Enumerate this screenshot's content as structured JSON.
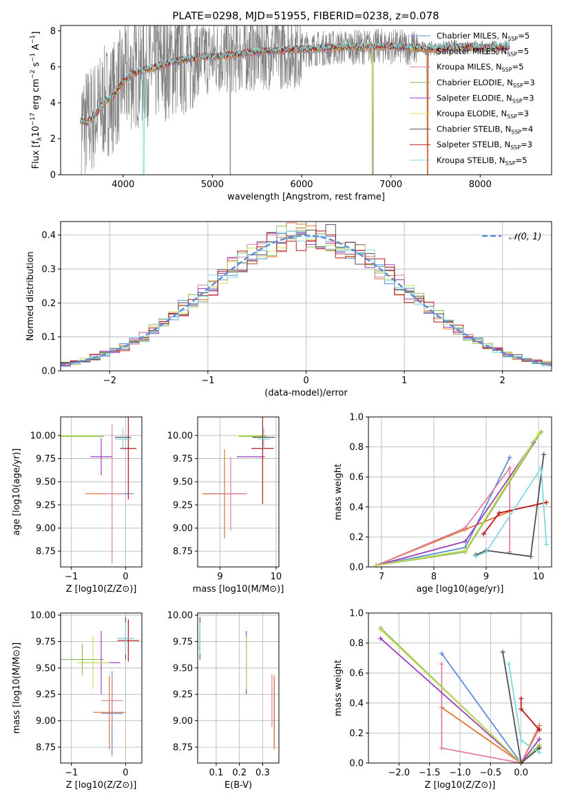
{
  "title": "PLATE=0298, MJD=51955, FIBERID=0238, z=0.078",
  "colors": {
    "Chabrier MILES": "#5b8bd9",
    "Salpeter MILES": "#e0712c",
    "Kroupa MILES": "#e07f9e",
    "Chabrier ELODIE": "#8cb85a",
    "Salpeter ELODIE": "#9b3dba",
    "Kroupa ELODIE": "#c8e05a",
    "Chabrier STELIB": "#505050",
    "Salpeter STELIB": "#b81414",
    "Kroupa STELIB": "#7fd8dc",
    "data": "#808080",
    "normal": "#5b8bd9"
  },
  "chart_data": [
    {
      "id": "spectrum",
      "type": "line",
      "title": "PLATE=0298, MJD=51955, FIBERID=0238, z=0.078",
      "xlabel": "wavelength [Angstrom, rest frame]",
      "ylabel": "Flux [fλ10−17 erg cm−2 s−1 A−1]",
      "xlim": [
        3300,
        8800
      ],
      "ylim": [
        0,
        8.3
      ],
      "xticks": [
        "4000",
        "5000",
        "6000",
        "7000",
        "8000"
      ],
      "yticks": [
        "0",
        "2",
        "4",
        "6",
        "8"
      ],
      "legend": [
        {
          "name": "Chabrier MILES",
          "nssp": "5"
        },
        {
          "name": "Salpeter MILES",
          "nssp": "5"
        },
        {
          "name": "Kroupa MILES",
          "nssp": "5"
        },
        {
          "name": "Chabrier ELODIE",
          "nssp": "3"
        },
        {
          "name": "Salpeter ELODIE",
          "nssp": "3"
        },
        {
          "name": "Kroupa ELODIE",
          "nssp": "3"
        },
        {
          "name": "Chabrier STELIB",
          "nssp": "4"
        },
        {
          "name": "Salpeter STELIB",
          "nssp": "3"
        },
        {
          "name": "Kroupa STELIB",
          "nssp": "5"
        }
      ],
      "model_continuum": {
        "x": [
          3520,
          3600,
          3700,
          3800,
          3900,
          4000,
          4100,
          4200,
          4300,
          4500,
          4700,
          4900,
          5100,
          5300,
          5500,
          5700,
          5900,
          6100,
          6300,
          6500,
          6700,
          6900,
          7100,
          7300,
          7500,
          7700,
          7900,
          8100,
          8300
        ],
        "y": [
          3.0,
          2.9,
          3.4,
          4.1,
          4.4,
          5.2,
          5.6,
          5.8,
          5.9,
          6.2,
          6.4,
          6.55,
          6.6,
          6.7,
          6.85,
          6.9,
          6.95,
          7.0,
          7.05,
          7.1,
          7.1,
          7.15,
          7.1,
          7.05,
          7.0,
          7.1,
          7.1,
          7.05,
          7.1
        ]
      }
    },
    {
      "id": "residuals",
      "type": "line",
      "xlabel": "(data-model)/error",
      "ylabel": "Normed distribution",
      "xlim": [
        -2.5,
        2.5
      ],
      "ylim": [
        0,
        0.44
      ],
      "xticks": [
        "−2",
        "−1",
        "0",
        "1",
        "2"
      ],
      "yticks": [
        "0.0",
        "0.1",
        "0.2",
        "0.3",
        "0.4"
      ],
      "legend": "𝒩(0, 1)",
      "series": [
        {
          "name": "𝒩(0, 1)",
          "x": [
            -2.5,
            -2.0,
            -1.5,
            -1.0,
            -0.5,
            0.0,
            0.5,
            1.0,
            1.5,
            2.0,
            2.5
          ],
          "y": [
            0.018,
            0.054,
            0.13,
            0.242,
            0.352,
            0.399,
            0.352,
            0.242,
            0.13,
            0.054,
            0.018
          ]
        }
      ]
    },
    {
      "id": "z-age",
      "type": "scatter",
      "xlabel": "Z [log10(Z/Z⊙)]",
      "ylabel": "age [log10(age/yr)]",
      "xlim": [
        -1.2,
        0.3
      ],
      "ylim": [
        8.58,
        10.2
      ],
      "xticks": [
        "−1",
        "0"
      ],
      "yticks": [
        "8.75",
        "9.00",
        "9.25",
        "9.50",
        "9.75",
        "10.00"
      ],
      "points": [
        {
          "model": "Chabrier MILES",
          "x": 0.0,
          "y": 9.37,
          "xerr": 0.15,
          "yerr": 0.0
        },
        {
          "model": "Salpeter MILES",
          "x": -0.45,
          "y": 9.37,
          "xerr": 0.3,
          "yerr": 0.0
        },
        {
          "model": "Kroupa MILES",
          "x": -0.25,
          "y": 9.37,
          "xerr": 0.2,
          "yerr": 0.75
        },
        {
          "model": "Chabrier ELODIE",
          "x": -0.85,
          "y": 9.99,
          "xerr": 0.45,
          "yerr": 0.0
        },
        {
          "model": "Salpeter ELODIE",
          "x": -0.45,
          "y": 9.77,
          "xerr": 0.2,
          "yerr": 0.2
        },
        {
          "model": "Kroupa ELODIE",
          "x": -0.85,
          "y": 10.0,
          "xerr": 0.35,
          "yerr": 0.0
        },
        {
          "model": "Chabrier STELIB",
          "x": -0.05,
          "y": 9.98,
          "xerr": 0.15,
          "yerr": 0.0
        },
        {
          "model": "Salpeter STELIB",
          "x": 0.05,
          "y": 9.86,
          "xerr": 0.15,
          "yerr": 0.55
        },
        {
          "model": "Kroupa STELIB",
          "x": -0.05,
          "y": 9.96,
          "xerr": 0.15,
          "yerr": 0.12
        }
      ]
    },
    {
      "id": "mass-age",
      "type": "scatter",
      "xlabel": "mass [log10(M/M⊙)]",
      "xlim": [
        8.6,
        10.05
      ],
      "ylim": [
        8.58,
        10.2
      ],
      "xticks": [
        "9",
        "10"
      ],
      "yticks": [
        "8.75",
        "9.00",
        "9.25",
        "9.50",
        "9.75",
        "10.00"
      ],
      "points": [
        {
          "model": "Chabrier MILES",
          "x": 9.06,
          "y": 9.37,
          "xerr": 0.35,
          "yerr": 0.0
        },
        {
          "model": "Salpeter MILES",
          "x": 9.08,
          "y": 9.37,
          "xerr": 0.4,
          "yerr": 0.48
        },
        {
          "model": "Kroupa MILES",
          "x": 9.19,
          "y": 9.37,
          "xerr": 0.25,
          "yerr": 0.4
        },
        {
          "model": "Chabrier ELODIE",
          "x": 9.58,
          "y": 9.99,
          "xerr": 0.25,
          "yerr": 0.0
        },
        {
          "model": "Salpeter ELODIE",
          "x": 9.55,
          "y": 9.77,
          "xerr": 0.25,
          "yerr": 0.0
        },
        {
          "model": "Kroupa ELODIE",
          "x": 9.55,
          "y": 10.0,
          "xerr": 0.25,
          "yerr": 0.0
        },
        {
          "model": "Chabrier STELIB",
          "x": 9.78,
          "y": 9.98,
          "xerr": 0.2,
          "yerr": 0.1
        },
        {
          "model": "Salpeter STELIB",
          "x": 9.76,
          "y": 9.86,
          "xerr": 0.2,
          "yerr": 0.6
        },
        {
          "model": "Kroupa STELIB",
          "x": 9.78,
          "y": 9.96,
          "xerr": 0.1,
          "yerr": 0.12
        }
      ]
    },
    {
      "id": "age-weight",
      "type": "line",
      "xlabel": "age [log10(age/yr)]",
      "ylabel": "mass weight",
      "xlim": [
        6.75,
        10.25
      ],
      "ylim": [
        0,
        1.0
      ],
      "xticks": [
        "7",
        "8",
        "9",
        "10"
      ],
      "yticks": [
        "0.0",
        "0.2",
        "0.4",
        "0.6",
        "0.8",
        "1.0"
      ],
      "series": [
        {
          "model": "Chabrier MILES",
          "x": [
            6.9,
            8.6,
            9.45
          ],
          "y": [
            0.01,
            0.13,
            0.73
          ]
        },
        {
          "model": "Salpeter MILES",
          "x": [
            6.9,
            8.6,
            9.45
          ],
          "y": [
            0.01,
            0.25,
            0.37
          ]
        },
        {
          "model": "Kroupa MILES",
          "x": [
            6.9,
            8.6,
            9.45,
            9.45
          ],
          "y": [
            0.01,
            0.26,
            0.66,
            0.1
          ]
        },
        {
          "model": "Chabrier ELODIE",
          "x": [
            6.9,
            8.6,
            10.05
          ],
          "y": [
            0.01,
            0.1,
            0.9
          ]
        },
        {
          "model": "Salpeter ELODIE",
          "x": [
            6.9,
            8.6,
            9.9
          ],
          "y": [
            0.01,
            0.17,
            0.83
          ]
        },
        {
          "model": "Kroupa ELODIE",
          "x": [
            6.9,
            8.6,
            10.0
          ],
          "y": [
            0.01,
            0.11,
            0.89
          ]
        },
        {
          "model": "Chabrier STELIB",
          "x": [
            8.8,
            9.0,
            9.85,
            10.1
          ],
          "y": [
            0.08,
            0.11,
            0.07,
            0.75
          ]
        },
        {
          "model": "Salpeter STELIB",
          "x": [
            8.95,
            9.25,
            10.15
          ],
          "y": [
            0.22,
            0.36,
            0.43
          ]
        },
        {
          "model": "Kroupa STELIB",
          "x": [
            8.8,
            9.0,
            10.05,
            10.15
          ],
          "y": [
            0.07,
            0.1,
            0.66,
            0.15
          ]
        }
      ]
    },
    {
      "id": "z-mass",
      "type": "scatter",
      "xlabel": "Z [log10(Z/Z⊙)]",
      "ylabel": "mass [log10(M/M⊙)]",
      "xlim": [
        -1.2,
        0.3
      ],
      "ylim": [
        8.6,
        10.02
      ],
      "xticks": [
        "−1",
        "0"
      ],
      "yticks": [
        "8.75",
        "9.00",
        "9.25",
        "9.50",
        "9.75",
        "10.00"
      ],
      "points": [
        {
          "model": "Chabrier MILES",
          "x": -0.25,
          "y": 9.07,
          "xerr": 0.2,
          "yerr": 0.4
        },
        {
          "model": "Salpeter MILES",
          "x": -0.3,
          "y": 9.08,
          "xerr": 0.3,
          "yerr": 0.35
        },
        {
          "model": "Kroupa MILES",
          "x": -0.25,
          "y": 9.19,
          "xerr": 0.2,
          "yerr": 0.25
        },
        {
          "model": "Chabrier ELODIE",
          "x": -0.8,
          "y": 9.58,
          "xerr": 0.4,
          "yerr": 0.15
        },
        {
          "model": "Salpeter ELODIE",
          "x": -0.45,
          "y": 9.55,
          "xerr": 0.35,
          "yerr": 0.3
        },
        {
          "model": "Kroupa ELODIE",
          "x": -0.6,
          "y": 9.55,
          "xerr": 0.3,
          "yerr": 0.25
        },
        {
          "model": "Chabrier STELIB",
          "x": 0.0,
          "y": 9.78,
          "xerr": 0.15,
          "yerr": 0.2
        },
        {
          "model": "Salpeter STELIB",
          "x": 0.05,
          "y": 9.76,
          "xerr": 0.2,
          "yerr": 0.2
        },
        {
          "model": "Kroupa STELIB",
          "x": 0.0,
          "y": 9.78,
          "xerr": 0.15,
          "yerr": 0.15
        }
      ]
    },
    {
      "id": "ebv-mass",
      "type": "scatter",
      "xlabel": "E(B-V)",
      "xlim": [
        0.02,
        0.37
      ],
      "ylim": [
        8.6,
        10.02
      ],
      "xticks": [
        "0.1",
        "0.2",
        "0.3"
      ],
      "yticks": [
        "8.75",
        "9.00",
        "9.25",
        "9.50",
        "9.75",
        "10.00"
      ],
      "points": [
        {
          "model": "Chabrier MILES",
          "x": 0.35,
          "y": 9.07,
          "yerr": 0.3
        },
        {
          "model": "Salpeter MILES",
          "x": 0.35,
          "y": 9.08,
          "yerr": 0.35
        },
        {
          "model": "Kroupa MILES",
          "x": 0.34,
          "y": 9.19,
          "yerr": 0.25
        },
        {
          "model": "Chabrier ELODIE",
          "x": 0.23,
          "y": 9.58,
          "yerr": 0.2
        },
        {
          "model": "Salpeter ELODIE",
          "x": 0.23,
          "y": 9.55,
          "yerr": 0.3
        },
        {
          "model": "Kroupa ELODIE",
          "x": 0.23,
          "y": 9.55,
          "yerr": 0.25
        },
        {
          "model": "Chabrier STELIB",
          "x": 0.03,
          "y": 9.78,
          "yerr": 0.2
        },
        {
          "model": "Salpeter STELIB",
          "x": 0.03,
          "y": 9.76,
          "yerr": 0.1
        },
        {
          "model": "Kroupa STELIB",
          "x": 0.03,
          "y": 9.78,
          "yerr": 0.15
        }
      ]
    },
    {
      "id": "z-weight",
      "type": "line",
      "xlabel": "Z [log10(Z/Z⊙)]",
      "ylabel": "mass weight",
      "xlim": [
        -2.5,
        0.5
      ],
      "ylim": [
        0,
        1.0
      ],
      "xticks": [
        "−2.0",
        "−1.5",
        "−1.0",
        "−0.5",
        "0.0"
      ],
      "yticks": [
        "0.0",
        "0.2",
        "0.4",
        "0.6",
        "0.8",
        "1.0"
      ],
      "series": [
        {
          "model": "Chabrier MILES",
          "x": [
            0.3,
            0.0,
            -1.3
          ],
          "y": [
            0.1,
            0.0,
            0.73
          ]
        },
        {
          "model": "Salpeter MILES",
          "x": [
            0.3,
            0.0,
            -1.3
          ],
          "y": [
            0.25,
            0.0,
            0.37
          ]
        },
        {
          "model": "Kroupa MILES",
          "x": [
            0.3,
            0.0,
            -1.3,
            -1.3
          ],
          "y": [
            0.23,
            0.0,
            0.1,
            0.66
          ]
        },
        {
          "model": "Chabrier ELODIE",
          "x": [
            0.3,
            0.0,
            -2.3
          ],
          "y": [
            0.12,
            0.0,
            0.9
          ]
        },
        {
          "model": "Salpeter ELODIE",
          "x": [
            0.3,
            0.0,
            -2.3
          ],
          "y": [
            0.16,
            0.0,
            0.83
          ]
        },
        {
          "model": "Kroupa ELODIE",
          "x": [
            0.3,
            0.0,
            -2.3
          ],
          "y": [
            0.11,
            0.0,
            0.89
          ]
        },
        {
          "model": "Chabrier STELIB",
          "x": [
            0.3,
            0.0,
            -0.3
          ],
          "y": [
            0.1,
            0.0,
            0.74
          ]
        },
        {
          "model": "Salpeter STELIB",
          "x": [
            0.3,
            0.0,
            0.0
          ],
          "y": [
            0.22,
            0.36,
            0.43
          ]
        },
        {
          "model": "Kroupa STELIB",
          "x": [
            0.3,
            0.0,
            -0.2
          ],
          "y": [
            0.07,
            0.15,
            0.66
          ]
        }
      ]
    }
  ]
}
